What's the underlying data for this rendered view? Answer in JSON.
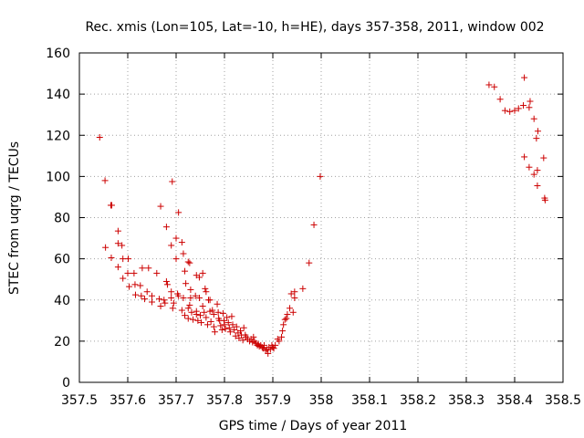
{
  "chart_data": {
    "type": "scatter",
    "title": "Rec. xmis (Lon=105, Lat=-10, h=HE), days 357-358, 2011, window 002",
    "xlabel": "GPS time / Days of year 2011",
    "ylabel": "STEC from uqrg / TECUs",
    "xlim": [
      357.5,
      358.5
    ],
    "ylim": [
      0,
      160
    ],
    "xticks": [
      "357.5",
      "357.6",
      "357.7",
      "357.8",
      "357.9",
      "358",
      "358.1",
      "358.2",
      "358.3",
      "358.4",
      "358.5"
    ],
    "yticks": [
      "0",
      "20",
      "40",
      "60",
      "80",
      "100",
      "120",
      "140",
      "160"
    ],
    "grid": true,
    "marker": "+",
    "color": "#cc0000",
    "series": [
      {
        "name": "STEC",
        "points": [
          [
            357.542,
            119
          ],
          [
            357.553,
            98
          ],
          [
            357.565,
            86
          ],
          [
            357.567,
            86
          ],
          [
            357.554,
            65.5
          ],
          [
            357.566,
            60.5
          ],
          [
            357.58,
            73.5
          ],
          [
            357.58,
            67.5
          ],
          [
            357.588,
            66.5
          ],
          [
            357.58,
            56
          ],
          [
            357.59,
            60
          ],
          [
            357.601,
            60
          ],
          [
            357.59,
            50.5
          ],
          [
            357.6,
            53
          ],
          [
            357.613,
            53
          ],
          [
            357.603,
            46.5
          ],
          [
            357.615,
            47.5
          ],
          [
            357.626,
            47
          ],
          [
            357.616,
            42.5
          ],
          [
            357.628,
            42
          ],
          [
            357.63,
            55.5
          ],
          [
            357.643,
            55.5
          ],
          [
            357.635,
            40.5
          ],
          [
            357.64,
            44
          ],
          [
            357.65,
            42
          ],
          [
            357.65,
            39
          ],
          [
            357.66,
            53
          ],
          [
            357.668,
            85.5
          ],
          [
            357.665,
            40.5
          ],
          [
            357.675,
            40
          ],
          [
            357.677,
            38.5
          ],
          [
            357.668,
            37
          ],
          [
            357.68,
            75.5
          ],
          [
            357.692,
            97.5
          ],
          [
            357.69,
            66.5
          ],
          [
            357.7,
            70
          ],
          [
            357.705,
            82.5
          ],
          [
            357.712,
            68
          ],
          [
            357.715,
            62.5
          ],
          [
            357.7,
            60
          ],
          [
            357.718,
            54
          ],
          [
            357.725,
            58.5
          ],
          [
            357.728,
            58
          ],
          [
            357.72,
            48
          ],
          [
            357.73,
            45
          ],
          [
            357.728,
            37.5
          ],
          [
            357.742,
            52
          ],
          [
            357.748,
            51
          ],
          [
            357.755,
            53
          ],
          [
            357.68,
            49
          ],
          [
            357.682,
            47.5
          ],
          [
            357.69,
            44
          ],
          [
            357.69,
            41
          ],
          [
            357.695,
            38.5
          ],
          [
            357.693,
            36
          ],
          [
            357.703,
            43
          ],
          [
            357.705,
            42
          ],
          [
            357.712,
            35
          ],
          [
            357.715,
            41
          ],
          [
            357.718,
            32.5
          ],
          [
            357.725,
            36
          ],
          [
            357.725,
            31
          ],
          [
            357.73,
            41
          ],
          [
            357.732,
            34
          ],
          [
            357.735,
            30.5
          ],
          [
            357.74,
            42
          ],
          [
            357.742,
            34.5
          ],
          [
            357.742,
            33
          ],
          [
            357.745,
            30
          ],
          [
            357.748,
            41
          ],
          [
            357.75,
            32.5
          ],
          [
            357.752,
            29
          ],
          [
            357.755,
            37
          ],
          [
            357.758,
            34
          ],
          [
            357.76,
            45.5
          ],
          [
            357.762,
            44
          ],
          [
            357.762,
            31.5
          ],
          [
            357.765,
            28
          ],
          [
            357.767,
            40
          ],
          [
            357.77,
            40
          ],
          [
            357.77,
            34.5
          ],
          [
            357.772,
            29.5
          ],
          [
            357.775,
            35
          ],
          [
            357.778,
            33
          ],
          [
            357.778,
            27
          ],
          [
            357.78,
            24.5
          ],
          [
            357.785,
            38
          ],
          [
            357.787,
            34
          ],
          [
            357.788,
            31
          ],
          [
            357.79,
            30
          ],
          [
            357.792,
            27.5
          ],
          [
            357.795,
            25.5
          ],
          [
            357.797,
            33.5
          ],
          [
            357.799,
            30
          ],
          [
            357.8,
            28
          ],
          [
            357.802,
            26
          ],
          [
            357.805,
            31.5
          ],
          [
            357.808,
            29
          ],
          [
            357.81,
            26.5
          ],
          [
            357.812,
            24.5
          ],
          [
            357.815,
            32
          ],
          [
            357.817,
            28
          ],
          [
            357.82,
            25.5
          ],
          [
            357.823,
            22.5
          ],
          [
            357.825,
            27
          ],
          [
            357.828,
            24
          ],
          [
            357.83,
            21.5
          ],
          [
            357.833,
            25
          ],
          [
            357.835,
            23
          ],
          [
            357.838,
            20.5
          ],
          [
            357.84,
            26.5
          ],
          [
            357.843,
            23
          ],
          [
            357.845,
            22
          ],
          [
            357.848,
            21
          ],
          [
            357.852,
            20
          ],
          [
            357.855,
            21
          ],
          [
            357.858,
            19.5
          ],
          [
            357.86,
            22
          ],
          [
            357.862,
            20
          ],
          [
            357.865,
            19
          ],
          [
            357.868,
            18
          ],
          [
            357.87,
            18.5
          ],
          [
            357.872,
            17.5
          ],
          [
            357.875,
            18
          ],
          [
            357.878,
            17
          ],
          [
            357.88,
            16.5
          ],
          [
            357.882,
            18
          ],
          [
            357.885,
            15.5
          ],
          [
            357.888,
            16
          ],
          [
            357.89,
            14
          ],
          [
            357.892,
            17
          ],
          [
            357.895,
            16
          ],
          [
            357.898,
            18
          ],
          [
            357.9,
            17
          ],
          [
            357.902,
            16.5
          ],
          [
            357.905,
            18
          ],
          [
            357.91,
            21
          ],
          [
            357.913,
            20
          ],
          [
            357.918,
            22
          ],
          [
            357.92,
            25
          ],
          [
            357.922,
            28
          ],
          [
            357.925,
            30.5
          ],
          [
            357.928,
            31
          ],
          [
            357.93,
            33
          ],
          [
            357.935,
            36
          ],
          [
            357.938,
            43
          ],
          [
            357.942,
            34
          ],
          [
            357.945,
            41
          ],
          [
            357.945,
            44
          ],
          [
            357.962,
            45.5
          ],
          [
            357.975,
            58
          ],
          [
            357.985,
            76.5
          ],
          [
            357.998,
            100
          ],
          [
            358.347,
            144.5
          ],
          [
            358.358,
            143.5
          ],
          [
            358.37,
            137.5
          ],
          [
            358.38,
            132
          ],
          [
            358.39,
            131.5
          ],
          [
            358.4,
            132
          ],
          [
            358.408,
            133
          ],
          [
            358.418,
            134.5
          ],
          [
            358.42,
            148
          ],
          [
            358.43,
            133.5
          ],
          [
            358.432,
            136.5
          ],
          [
            358.44,
            128
          ],
          [
            358.448,
            122
          ],
          [
            358.445,
            118.5
          ],
          [
            358.42,
            109.5
          ],
          [
            358.43,
            104.5
          ],
          [
            358.44,
            101
          ],
          [
            358.447,
            103
          ],
          [
            358.447,
            95.5
          ],
          [
            358.46,
            109
          ],
          [
            358.462,
            89.5
          ],
          [
            358.463,
            88.5
          ]
        ]
      }
    ]
  }
}
